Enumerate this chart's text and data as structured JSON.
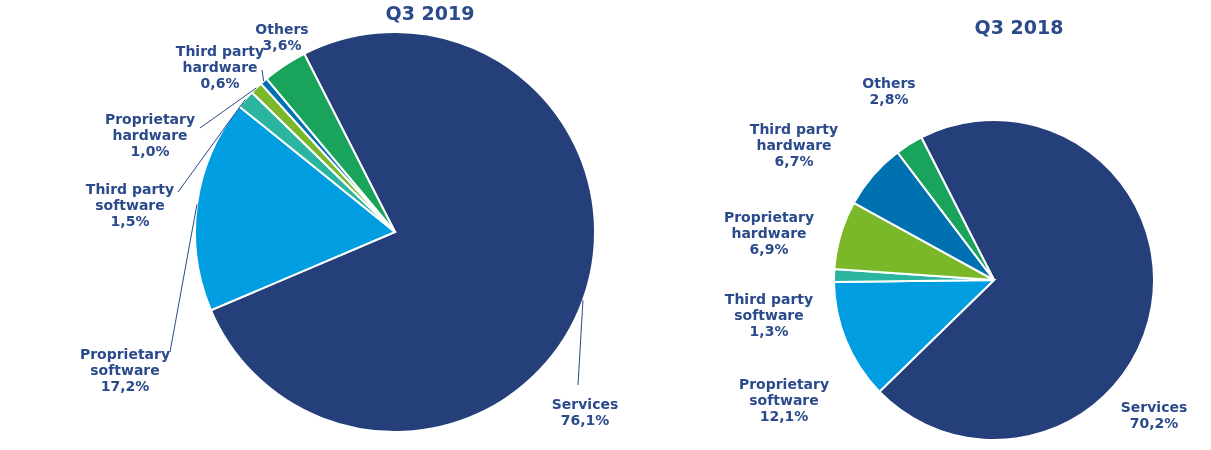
{
  "chart_data": [
    {
      "type": "pie",
      "title": "Q3 2019",
      "categories": [
        "Services",
        "Proprietary software",
        "Third party software",
        "Proprietary hardware",
        "Third party hardware",
        "Others"
      ],
      "values": [
        76.1,
        17.2,
        1.5,
        1.0,
        0.6,
        3.6
      ],
      "colors": [
        "#253f7a",
        "#009ee0",
        "#2bb5a0",
        "#7ab829",
        "#0071b0",
        "#1aa35a"
      ],
      "value_labels": [
        "76,1%",
        "17,2%",
        "1,5%",
        "1,0%",
        "0,6%",
        "3,6%"
      ]
    },
    {
      "type": "pie",
      "title": "Q3 2018",
      "categories": [
        "Services",
        "Proprietary software",
        "Third party software",
        "Proprietary hardware",
        "Third party hardware",
        "Others"
      ],
      "values": [
        70.2,
        12.1,
        1.3,
        6.9,
        6.7,
        2.8
      ],
      "colors": [
        "#253f7a",
        "#009ee0",
        "#2bb5a0",
        "#7ab829",
        "#0071b0",
        "#1aa35a"
      ],
      "value_labels": [
        "70,2%",
        "12,1%",
        "1,3%",
        "6,9%",
        "6,7%",
        "2,8%"
      ]
    }
  ]
}
